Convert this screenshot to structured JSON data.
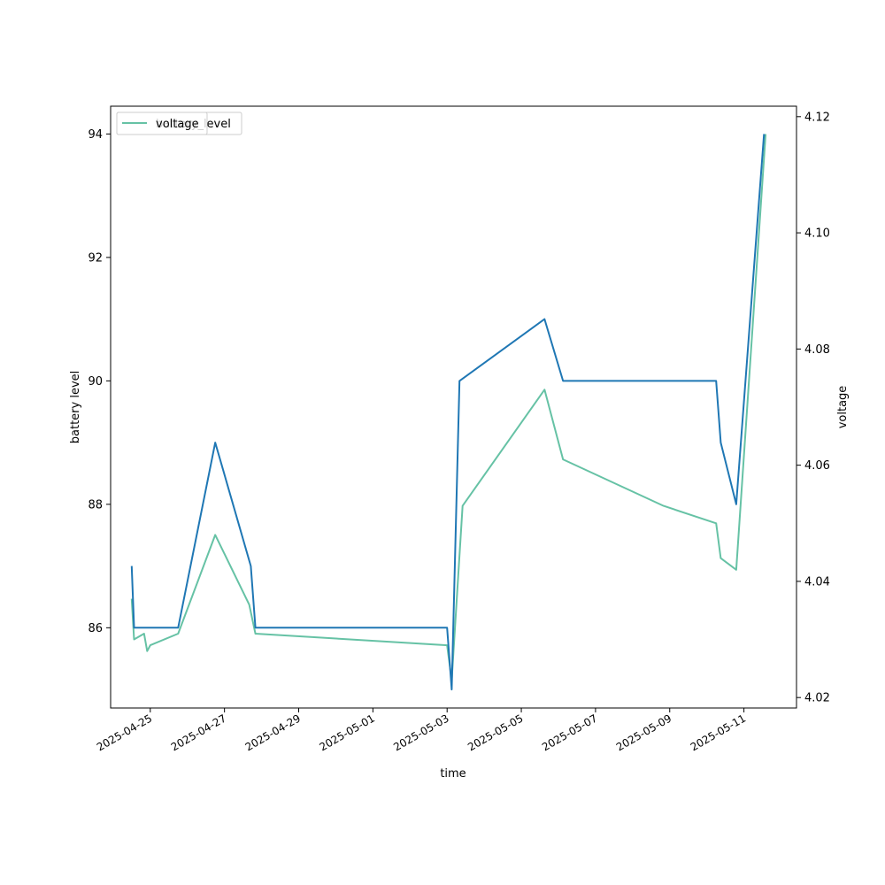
{
  "chart_data": {
    "type": "line",
    "xlabel": "time",
    "ylabel_left": "battery level",
    "ylabel_right": "voltage",
    "xlim": [
      "2025-04-23T22:21",
      "2025-05-12T10:00"
    ],
    "ylim_left": [
      84.7,
      94.45
    ],
    "ylim_right": [
      4.0182,
      4.1218
    ],
    "x_ticks": [
      "2025-04-25",
      "2025-04-27",
      "2025-04-29",
      "2025-05-01",
      "2025-05-03",
      "2025-05-05",
      "2025-05-07",
      "2025-05-09",
      "2025-05-11"
    ],
    "y_ticks_left": [
      86,
      88,
      90,
      92,
      94
    ],
    "y_ticks_right": [
      "4.02",
      "4.04",
      "4.06",
      "4.08",
      "4.10",
      "4.12"
    ],
    "legend": {
      "placement": "upper-left",
      "entries": [
        "battery_level",
        "voltage"
      ]
    },
    "grid": false,
    "series": [
      {
        "name": "battery_level",
        "axis": "left",
        "color": "#1f77b4",
        "points": [
          [
            "2025-04-24T12:00",
            87
          ],
          [
            "2025-04-24T13:30",
            86
          ],
          [
            "2025-04-25T18:00",
            86
          ],
          [
            "2025-04-26T18:00",
            89
          ],
          [
            "2025-04-27T17:00",
            87
          ],
          [
            "2025-04-27T20:00",
            86
          ],
          [
            "2025-05-03T00:00",
            86
          ],
          [
            "2025-05-03T03:00",
            85
          ],
          [
            "2025-05-03T08:00",
            90
          ],
          [
            "2025-05-05T15:00",
            91
          ],
          [
            "2025-05-06T03:00",
            90
          ],
          [
            "2025-05-10T06:00",
            90
          ],
          [
            "2025-05-10T09:00",
            89
          ],
          [
            "2025-05-10T19:00",
            88
          ],
          [
            "2025-05-11T13:00",
            94
          ]
        ]
      },
      {
        "name": "voltage",
        "axis": "right",
        "color": "#66c2a5",
        "points": [
          [
            "2025-04-24T12:00",
            4.037
          ],
          [
            "2025-04-24T13:30",
            4.03
          ],
          [
            "2025-04-24T20:00",
            4.031
          ],
          [
            "2025-04-24T22:00",
            4.028
          ],
          [
            "2025-04-25T00:00",
            4.029
          ],
          [
            "2025-04-25T18:00",
            4.031
          ],
          [
            "2025-04-26T18:00",
            4.048
          ],
          [
            "2025-04-27T16:00",
            4.036
          ],
          [
            "2025-04-27T20:00",
            4.031
          ],
          [
            "2025-05-03T00:00",
            4.029
          ],
          [
            "2025-05-03T03:00",
            4.023
          ],
          [
            "2025-05-03T10:00",
            4.053
          ],
          [
            "2025-05-05T15:00",
            4.073
          ],
          [
            "2025-05-06T03:00",
            4.061
          ],
          [
            "2025-05-08T20:00",
            4.053
          ],
          [
            "2025-05-10T06:00",
            4.05
          ],
          [
            "2025-05-10T09:00",
            4.044
          ],
          [
            "2025-05-10T19:00",
            4.042
          ],
          [
            "2025-05-11T14:00",
            4.117
          ]
        ]
      }
    ]
  }
}
